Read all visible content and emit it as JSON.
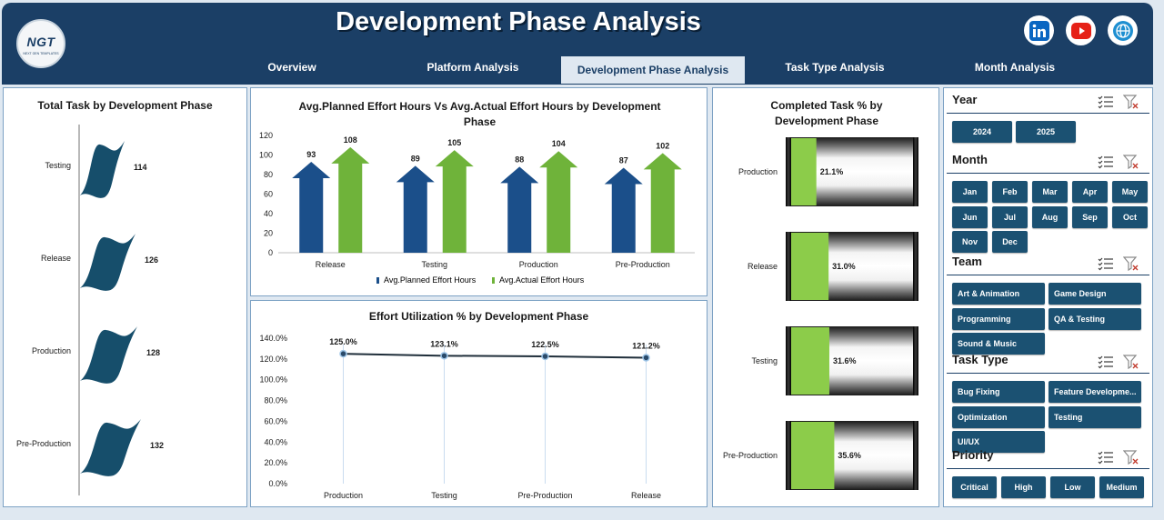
{
  "header": {
    "title": "Development Phase Analysis",
    "logo_text": "NGT",
    "logo_subtext": "NEXT GEN TEMPLATES",
    "social": [
      "linkedin-icon",
      "youtube-icon",
      "web-icon"
    ],
    "tabs": [
      {
        "label": "Overview",
        "active": false
      },
      {
        "label": "Platform Analysis",
        "active": false
      },
      {
        "label": "Development Phase Analysis",
        "active": true
      },
      {
        "label": "Task Type Analysis",
        "active": false
      },
      {
        "label": "Month Analysis",
        "active": false
      }
    ]
  },
  "colors": {
    "header_bg": "#1b3f66",
    "planned": "#1b4f8a",
    "actual": "#6fb33a",
    "wave": "#164e6b",
    "gauge_fill": "#8ccc4a",
    "slicer_btn": "#1b5172"
  },
  "chart_data": [
    {
      "type": "bar",
      "title": "Total Task by Development Phase",
      "categories": [
        "Testing",
        "Release",
        "Production",
        "Pre-Production"
      ],
      "values": [
        114,
        126,
        128,
        132
      ]
    },
    {
      "type": "bar",
      "title": "Avg.Planned Effort Hours Vs Avg.Actual Effort Hours by Development Phase",
      "categories": [
        "Release",
        "Testing",
        "Production",
        "Pre-Production"
      ],
      "series": [
        {
          "name": "Avg.Planned Effort Hours",
          "values": [
            93,
            89,
            88,
            87
          ]
        },
        {
          "name": "Avg.Actual Effort Hours",
          "values": [
            108,
            105,
            104,
            102
          ]
        }
      ],
      "yticks": [
        "0",
        "20",
        "40",
        "60",
        "80",
        "100",
        "120"
      ],
      "ylim": [
        0,
        120
      ]
    },
    {
      "type": "line",
      "title": "Effort Utilization % by Development Phase",
      "categories": [
        "Production",
        "Testing",
        "Pre-Production",
        "Release"
      ],
      "values": [
        125.0,
        123.1,
        122.5,
        121.2
      ],
      "labels": [
        "125.0%",
        "123.1%",
        "122.5%",
        "121.2%"
      ],
      "yticks": [
        "0.0%",
        "20.0%",
        "40.0%",
        "60.0%",
        "80.0%",
        "100.0%",
        "120.0%",
        "140.0%"
      ],
      "ylim": [
        0,
        140
      ]
    },
    {
      "type": "bar",
      "title": "Completed Task % by Development Phase",
      "categories": [
        "Production",
        "Release",
        "Testing",
        "Pre-Production"
      ],
      "values": [
        21.1,
        31.0,
        31.6,
        35.6
      ],
      "labels": [
        "21.1%",
        "31.0%",
        "31.6%",
        "35.6%"
      ]
    }
  ],
  "slicers": [
    {
      "title": "Year",
      "items": [
        "2024",
        "2025"
      ]
    },
    {
      "title": "Month",
      "items": [
        "Jan",
        "Feb",
        "Mar",
        "Apr",
        "May",
        "Jun",
        "Jul",
        "Aug",
        "Sep",
        "Oct",
        "Nov",
        "Dec"
      ]
    },
    {
      "title": "Team",
      "items": [
        "Art & Animation",
        "Game Design",
        "Programming",
        "QA & Testing",
        "Sound & Music"
      ]
    },
    {
      "title": "Task Type",
      "items": [
        "Bug Fixing",
        "Feature Developme...",
        "Optimization",
        "Testing",
        "UI/UX"
      ]
    },
    {
      "title": "Priority",
      "items": [
        "Critical",
        "High",
        "Low",
        "Medium"
      ]
    }
  ]
}
